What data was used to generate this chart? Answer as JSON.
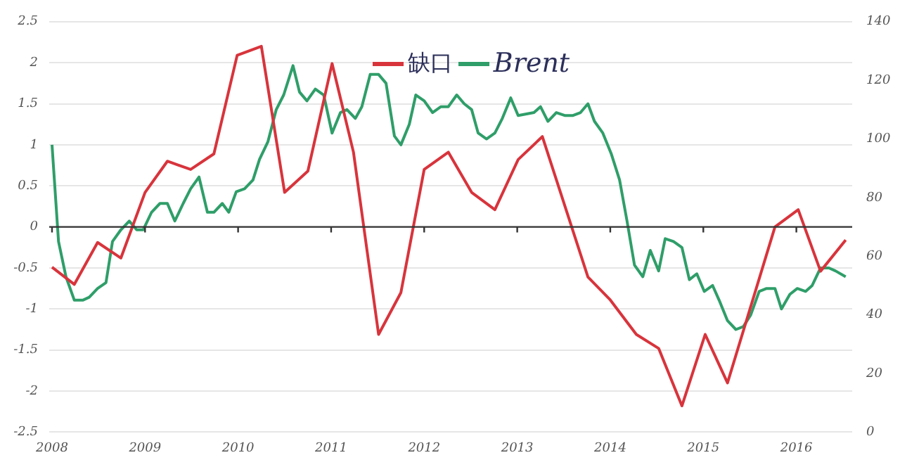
{
  "chart_data": {
    "type": "line",
    "series": [
      {
        "name": "缺口",
        "color": "#d8343c",
        "axis": "y",
        "x": [
          2008.0,
          2008.24,
          2008.49,
          2008.74,
          2009.0,
          2009.24,
          2009.49,
          2009.74,
          2009.99,
          2010.25,
          2010.5,
          2010.75,
          2011.01,
          2011.24,
          2011.51,
          2011.75,
          2012.0,
          2012.26,
          2012.51,
          2012.76,
          2013.01,
          2013.27,
          2013.76,
          2014.0,
          2014.28,
          2014.52,
          2014.77,
          2015.02,
          2015.26,
          2015.77,
          2016.02,
          2016.26,
          2016.53
        ],
        "values": [
          -0.49,
          -0.7,
          -0.19,
          -0.38,
          0.42,
          0.8,
          0.7,
          0.89,
          2.09,
          2.2,
          0.42,
          0.68,
          1.99,
          0.91,
          -1.31,
          -0.8,
          0.7,
          0.91,
          0.42,
          0.21,
          0.82,
          1.1,
          -0.61,
          -0.89,
          -1.31,
          -1.48,
          -2.18,
          -1.31,
          -1.9,
          0.0,
          0.21,
          -0.54,
          -0.16
        ]
      },
      {
        "name": "Brent",
        "color": "#2f9e69",
        "axis": "y2",
        "x": [
          2008.0,
          2008.07,
          2008.15,
          2008.24,
          2008.33,
          2008.4,
          2008.49,
          2008.58,
          2008.65,
          2008.74,
          2008.83,
          2008.91,
          2008.98,
          2009.07,
          2009.16,
          2009.24,
          2009.32,
          2009.41,
          2009.49,
          2009.58,
          2009.67,
          2009.74,
          2009.83,
          2009.9,
          2009.98,
          2010.07,
          2010.16,
          2010.23,
          2010.32,
          2010.41,
          2010.49,
          2010.59,
          2010.66,
          2010.74,
          2010.83,
          2010.92,
          2011.01,
          2011.1,
          2011.17,
          2011.26,
          2011.33,
          2011.42,
          2011.51,
          2011.59,
          2011.68,
          2011.75,
          2011.84,
          2011.91,
          2012.0,
          2012.09,
          2012.18,
          2012.26,
          2012.35,
          2012.43,
          2012.51,
          2012.58,
          2012.67,
          2012.76,
          2012.84,
          2012.93,
          2013.01,
          2013.18,
          2013.25,
          2013.33,
          2013.42,
          2013.51,
          2013.6,
          2013.68,
          2013.76,
          2013.83,
          2013.92,
          2014.01,
          2014.1,
          2014.18,
          2014.26,
          2014.35,
          2014.43,
          2014.52,
          2014.59,
          2014.68,
          2014.77,
          2014.85,
          2014.93,
          2015.01,
          2015.1,
          2015.17,
          2015.26,
          2015.35,
          2015.43,
          2015.51,
          2015.6,
          2015.68,
          2015.77,
          2015.84,
          2015.93,
          2016.01,
          2016.1,
          2016.17,
          2016.26,
          2016.35,
          2016.42,
          2016.53
        ],
        "values": [
          98,
          65,
          53,
          45,
          45,
          46,
          49,
          51,
          65,
          69,
          72,
          69,
          69,
          75,
          78,
          78,
          72,
          78,
          83,
          87,
          75,
          75,
          78,
          75,
          82,
          83,
          86,
          93,
          99,
          110,
          115,
          125,
          116,
          113,
          117,
          115,
          102,
          109,
          110,
          107,
          111,
          122,
          122,
          119,
          101,
          98,
          105,
          115,
          113,
          109,
          111,
          111,
          115,
          112,
          110,
          102,
          100,
          102,
          107,
          114,
          108,
          109,
          111,
          106,
          109,
          108,
          108,
          109,
          112,
          106,
          102,
          95,
          86,
          72,
          57,
          53,
          62,
          55,
          66,
          65,
          63,
          52,
          54,
          48,
          50,
          45,
          38,
          35,
          36,
          40,
          48,
          49,
          49,
          42,
          47,
          49,
          48,
          50,
          56,
          56,
          55,
          53
        ]
      }
    ],
    "xlim": [
      2007.97,
      2016.6
    ],
    "xticks": [
      2008,
      2009,
      2010,
      2011,
      2012,
      2013,
      2014,
      2015,
      2016
    ],
    "ylim": [
      -2.5,
      2.5
    ],
    "yticks": [
      -2.5,
      -2,
      -1.5,
      -1,
      -0.5,
      0,
      0.5,
      1,
      1.5,
      2,
      2.5
    ],
    "y2lim": [
      0,
      140
    ],
    "y2ticks": [
      0,
      20,
      40,
      60,
      80,
      100,
      120,
      140
    ],
    "ref_lines": [
      {
        "axis": "y",
        "value": 0,
        "color": "#333333"
      }
    ],
    "grid": "y",
    "legend": "top",
    "marker": "none",
    "line_style": "solid"
  }
}
